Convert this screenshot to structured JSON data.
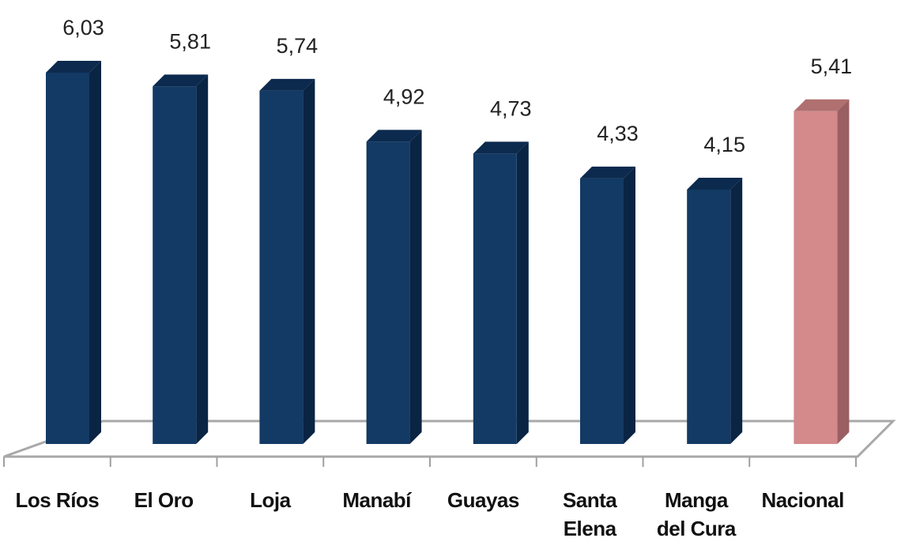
{
  "chart_data": {
    "type": "bar",
    "style": "3d-column",
    "title": "",
    "xlabel": "",
    "ylabel": "",
    "categories": [
      "Los Ríos",
      "El Oro",
      "Loja",
      "Manabí",
      "Guayas",
      "Santa Elena",
      "Manga del Cura",
      "Nacional"
    ],
    "category_lines": [
      [
        "Los Ríos"
      ],
      [
        "El Oro"
      ],
      [
        "Loja"
      ],
      [
        "Manabí"
      ],
      [
        "Guayas"
      ],
      [
        "Santa",
        "Elena"
      ],
      [
        "Manga",
        "del Cura"
      ],
      [
        "Nacional"
      ]
    ],
    "values": [
      6.03,
      5.81,
      5.74,
      4.92,
      4.73,
      4.33,
      4.15,
      5.41
    ],
    "value_labels": [
      "6,03",
      "5,81",
      "5,74",
      "4,92",
      "4,73",
      "4,33",
      "4,15",
      "5,41"
    ],
    "legend": [],
    "grid": false,
    "y_axis_visible": false,
    "data_labels": true
  },
  "colors": {
    "bar_front": "#123a64",
    "bar_side": "#0a2444",
    "bar_top": "#0c2a4e",
    "highlight_front": "#d4898b",
    "highlight_side": "#9a5f62",
    "highlight_top": "#b0706f",
    "floor_line": "#a8a8a8",
    "highlight_index": 7
  }
}
